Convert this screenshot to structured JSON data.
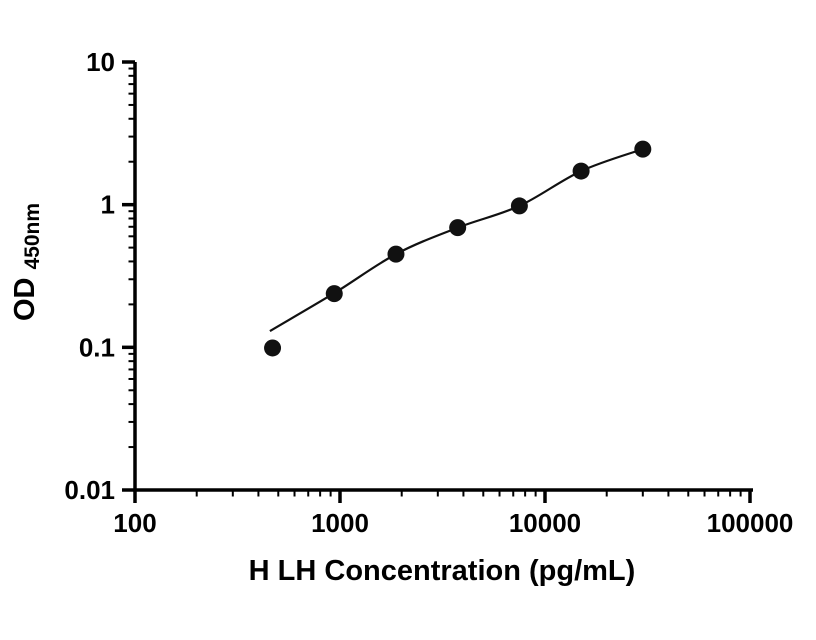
{
  "figure": {
    "background": "#ffffff",
    "axis_color": "#000000"
  },
  "chart_data": {
    "type": "scatter",
    "title": "",
    "xlabel": "H LH Concentration (pg/mL)",
    "ylabel_main": "OD",
    "ylabel_sub": "450nm",
    "x_scale": "log",
    "y_scale": "log",
    "xlim": [
      100,
      100000
    ],
    "ylim": [
      0.01,
      10
    ],
    "x_tick_labels": [
      "100",
      "1000",
      "10000",
      "100000"
    ],
    "x_tick_values": [
      100,
      1000,
      10000,
      100000
    ],
    "y_tick_labels": [
      "0.01",
      "0.1",
      "1",
      "10"
    ],
    "y_tick_values": [
      0.01,
      0.1,
      1,
      10
    ],
    "grid": false,
    "legend": "none",
    "marker_color": "#111111",
    "line_color": "#111111",
    "points": [
      {
        "x": 468.75,
        "y": 0.099
      },
      {
        "x": 937.5,
        "y": 0.238
      },
      {
        "x": 1875,
        "y": 0.45
      },
      {
        "x": 3750,
        "y": 0.69
      },
      {
        "x": 7500,
        "y": 0.98
      },
      {
        "x": 15000,
        "y": 1.72
      },
      {
        "x": 30000,
        "y": 2.45
      }
    ],
    "fit_curve": [
      {
        "x": 455,
        "y": 0.13
      },
      {
        "x": 937.5,
        "y": 0.24
      },
      {
        "x": 1875,
        "y": 0.45
      },
      {
        "x": 3750,
        "y": 0.69
      },
      {
        "x": 7500,
        "y": 0.98
      },
      {
        "x": 15000,
        "y": 1.72
      },
      {
        "x": 30000,
        "y": 2.45
      }
    ]
  }
}
